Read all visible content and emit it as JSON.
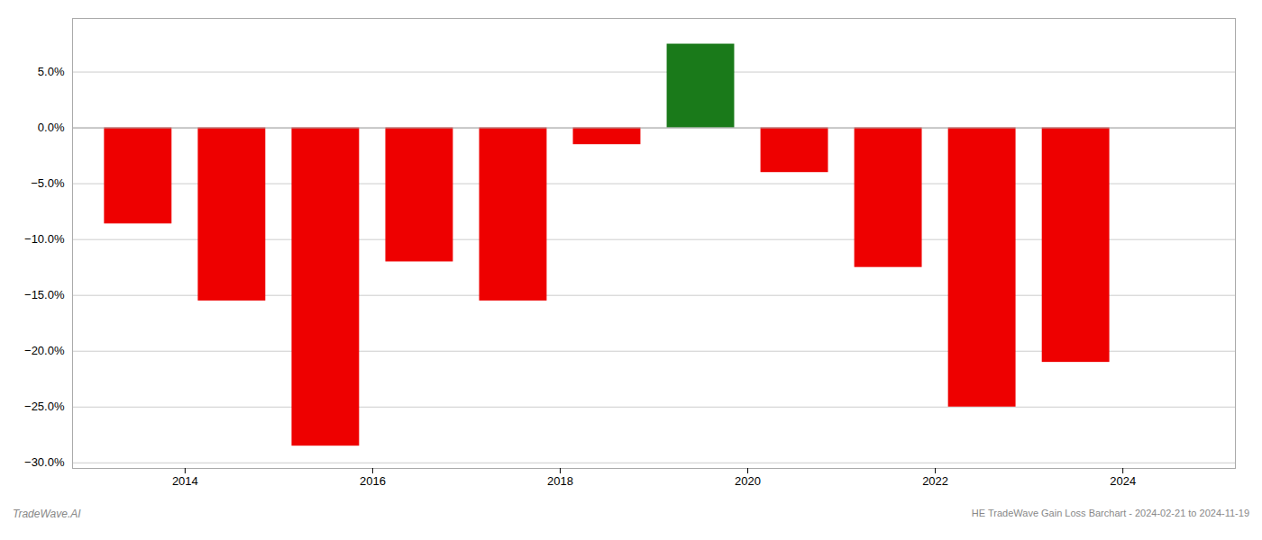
{
  "chart_data": {
    "type": "bar",
    "x": [
      2013.5,
      2014.5,
      2015.5,
      2016.5,
      2017.5,
      2018.5,
      2019.5,
      2020.5,
      2021.5,
      2022.5,
      2023.5
    ],
    "values": [
      -0.086,
      -0.155,
      -0.285,
      -0.12,
      -0.155,
      -0.015,
      0.075,
      -0.04,
      -0.125,
      -0.25,
      -0.21
    ],
    "colors": [
      "#ee0000",
      "#ee0000",
      "#ee0000",
      "#ee0000",
      "#ee0000",
      "#ee0000",
      "#1a7a1a",
      "#ee0000",
      "#ee0000",
      "#ee0000",
      "#ee0000"
    ],
    "xlim": [
      2012.8,
      2025.2
    ],
    "xticks": [
      2014,
      2016,
      2018,
      2020,
      2022,
      2024
    ],
    "ylim": [
      -0.305,
      0.098
    ],
    "yticks": [
      {
        "value": -0.3,
        "label": "−30.0%"
      },
      {
        "value": -0.25,
        "label": "−25.0%"
      },
      {
        "value": -0.2,
        "label": "−20.0%"
      },
      {
        "value": -0.15,
        "label": "−15.0%"
      },
      {
        "value": -0.1,
        "label": "−10.0%"
      },
      {
        "value": -0.05,
        "label": "−5.0%"
      },
      {
        "value": 0,
        "label": "0.0%"
      },
      {
        "value": 0.05,
        "label": "5.0%"
      }
    ],
    "grid": true,
    "annotations": [
      "TradeWave.AI",
      "HE TradeWave Gain Loss Barchart - 2024-02-21 to 2024-11-19"
    ]
  }
}
